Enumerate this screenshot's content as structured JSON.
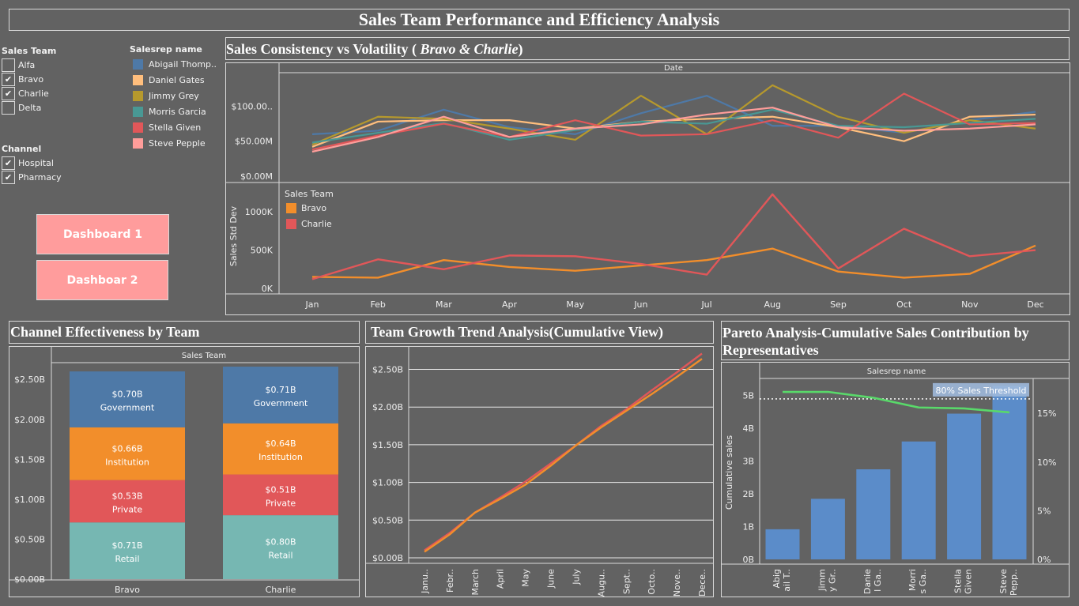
{
  "header": {
    "title": "Sales Team Performance and Efficiency Analysis"
  },
  "filters": {
    "sales_team": {
      "title": "Sales Team",
      "items": [
        {
          "label": "Alfa",
          "checked": false
        },
        {
          "label": "Bravo",
          "checked": true
        },
        {
          "label": "Charlie",
          "checked": true
        },
        {
          "label": "Delta",
          "checked": false
        }
      ]
    },
    "channel": {
      "title": "Channel",
      "items": [
        {
          "label": "Hospital",
          "checked": true
        },
        {
          "label": "Pharmacy",
          "checked": true
        }
      ]
    }
  },
  "salesrep_legend": {
    "title": "Salesrep name",
    "items": [
      {
        "label": "Abigail Thomp..",
        "color": "#4e79a7"
      },
      {
        "label": "Daniel Gates",
        "color": "#ffbe7d"
      },
      {
        "label": "Jimmy Grey",
        "color": "#b6992d"
      },
      {
        "label": "Morris Garcia",
        "color": "#499894"
      },
      {
        "label": "Stella Given",
        "color": "#e15759"
      },
      {
        "label": "Steve Pepple",
        "color": "#ff9d9a"
      }
    ]
  },
  "buttons": {
    "dashboard1": "Dashboard 1",
    "dashboard2": "Dashboar 2"
  },
  "chart_data": [
    {
      "id": "consistency",
      "type": "line",
      "title": "Sales Consistency vs Volatility ( Bravo & Charlie)",
      "title_main": "Sales Consistency vs Volatility ( ",
      "title_italic": "Bravo & Charlie",
      "title_end": ")",
      "header": "Date",
      "categories": [
        "Jan",
        "Feb",
        "Mar",
        "Apr",
        "May",
        "Jun",
        "Jul",
        "Aug",
        "Sep",
        "Oct",
        "Nov",
        "Dec"
      ],
      "top": {
        "ylim": [
          0,
          140
        ],
        "yticks": [
          {
            "v": 0,
            "label": "$0.00M"
          },
          {
            "v": 50,
            "label": "$50.00M"
          },
          {
            "v": 100,
            "label": "$100.00.."
          }
        ],
        "series": [
          {
            "name": "Abigail Thomp..",
            "color": "#4e79a7",
            "values": [
              60,
              65,
              95,
              70,
              60,
              90,
              115,
              72,
              72,
              62,
              80,
              92
            ]
          },
          {
            "name": "Daniel Gates",
            "color": "#ffbe7d",
            "values": [
              42,
              78,
              80,
              80,
              68,
              78,
              82,
              85,
              70,
              50,
              85,
              88
            ]
          },
          {
            "name": "Jimmy Grey",
            "color": "#b6992d",
            "values": [
              45,
              85,
              82,
              68,
              52,
              115,
              60,
              130,
              85,
              62,
              80,
              68
            ]
          },
          {
            "name": "Morris Garcia",
            "color": "#499894",
            "values": [
              48,
              62,
              76,
              52,
              66,
              78,
              75,
              95,
              72,
              70,
              76,
              82
            ]
          },
          {
            "name": "Stella Given",
            "color": "#e15759",
            "values": [
              38,
              58,
              75,
              56,
              80,
              58,
              60,
              80,
              55,
              118,
              74,
              76
            ]
          },
          {
            "name": "Steve Pepple",
            "color": "#ff9d9a",
            "values": [
              35,
              56,
              85,
              56,
              68,
              74,
              88,
              98,
              70,
              65,
              68,
              74
            ]
          }
        ]
      },
      "bottom": {
        "ylabel": "Sales Std Dev",
        "ylim": [
          0,
          1250
        ],
        "yticks": [
          {
            "v": 0,
            "label": "0K"
          },
          {
            "v": 500,
            "label": "500K"
          },
          {
            "v": 1000,
            "label": "1000K"
          }
        ],
        "legend_title": "Sales Team",
        "series": [
          {
            "name": "Bravo",
            "color": "#f28e2b",
            "values": [
              150,
              140,
              370,
              280,
              230,
              300,
              370,
              520,
              220,
              140,
              190,
              560
            ]
          },
          {
            "name": "Charlie",
            "color": "#e15759",
            "values": [
              120,
              380,
              250,
              430,
              420,
              320,
              180,
              1230,
              260,
              780,
              420,
              500
            ]
          }
        ]
      }
    },
    {
      "id": "channel",
      "type": "bar",
      "title": "Channel Effectiveness by Team",
      "header": "Sales Team",
      "categories": [
        "Bravo",
        "Charlie"
      ],
      "ylim": [
        0,
        2.7
      ],
      "yticks": [
        {
          "v": 0,
          "label": "$0.00B"
        },
        {
          "v": 0.5,
          "label": "$0.50B"
        },
        {
          "v": 1.0,
          "label": "$1.00B"
        },
        {
          "v": 1.5,
          "label": "$1.50B"
        },
        {
          "v": 2.0,
          "label": "$2.00B"
        },
        {
          "v": 2.5,
          "label": "$2.50B"
        }
      ],
      "series": [
        {
          "name": "Retail",
          "color": "#76b7b2",
          "values": [
            0.71,
            0.8
          ],
          "labels": [
            "$0.71B",
            "$0.80B"
          ]
        },
        {
          "name": "Private",
          "color": "#e15759",
          "values": [
            0.53,
            0.51
          ],
          "labels": [
            "$0.53B",
            "$0.51B"
          ]
        },
        {
          "name": "Institution",
          "color": "#f28e2b",
          "values": [
            0.66,
            0.64
          ],
          "labels": [
            "$0.66B",
            "$0.64B"
          ]
        },
        {
          "name": "Government",
          "color": "#4e79a7",
          "values": [
            0.7,
            0.71
          ],
          "labels": [
            "$0.70B",
            "$0.71B"
          ]
        }
      ]
    },
    {
      "id": "growth",
      "type": "line",
      "title": "Team Growth Trend Analysis(Cumulative View)",
      "categories": [
        "Janu..",
        "Febr..",
        "March",
        "April",
        "May",
        "June",
        "July",
        "Augu..",
        "Sept..",
        "Octo..",
        "Nove..",
        "Dece.."
      ],
      "ylim": [
        0,
        2.6
      ],
      "yticks": [
        {
          "v": 0,
          "label": "$0.00B"
        },
        {
          "v": 0.5,
          "label": "$0.50B"
        },
        {
          "v": 1.0,
          "label": "$1.00B"
        },
        {
          "v": 1.5,
          "label": "$1.50B"
        },
        {
          "v": 2.0,
          "label": "$2.00B"
        },
        {
          "v": 2.5,
          "label": "$2.50B"
        }
      ],
      "series": [
        {
          "name": "Charlie",
          "color": "#e15759",
          "values": [
            0.1,
            0.33,
            0.6,
            0.8,
            1.01,
            1.25,
            1.49,
            1.75,
            1.97,
            2.22,
            2.46,
            2.71
          ]
        },
        {
          "name": "Bravo",
          "color": "#f28e2b",
          "values": [
            0.08,
            0.31,
            0.6,
            0.78,
            0.97,
            1.22,
            1.49,
            1.73,
            1.95,
            2.17,
            2.4,
            2.64
          ]
        }
      ]
    },
    {
      "id": "pareto",
      "type": "bar",
      "title": "Pareto Analysis-Cumulative Sales Contribution by Representatives",
      "header": "Salesrep name",
      "ylabel": "Cumulative sales",
      "categories": [
        "Abig\nail T..",
        "Jimm\ny Gr..",
        "Danie\nl Ga..",
        "Morri\ns Ga..",
        "Stella\nGiven",
        "Steve\nPepp.."
      ],
      "ylim": [
        0,
        5.5
      ],
      "yticks": [
        {
          "v": 0,
          "label": "0B"
        },
        {
          "v": 1,
          "label": "1B"
        },
        {
          "v": 2,
          "label": "2B"
        },
        {
          "v": 3,
          "label": "3B"
        },
        {
          "v": 4,
          "label": "4B"
        },
        {
          "v": 5,
          "label": "5B"
        }
      ],
      "values": [
        0.92,
        1.85,
        2.75,
        3.6,
        4.45,
        5.3
      ],
      "bar_color": "#5b8cc9",
      "y2lim": [
        0,
        18.5
      ],
      "y2ticks": [
        {
          "v": 0,
          "label": "0%"
        },
        {
          "v": 5,
          "label": "5%"
        },
        {
          "v": 10,
          "label": "10%"
        },
        {
          "v": 15,
          "label": "15%"
        }
      ],
      "line_values": [
        17.2,
        17.2,
        16.6,
        15.6,
        15.5,
        15.1
      ],
      "line_color": "#59d96a",
      "threshold": {
        "value": 4.9,
        "label": "80% Sales Threshold"
      }
    }
  ]
}
